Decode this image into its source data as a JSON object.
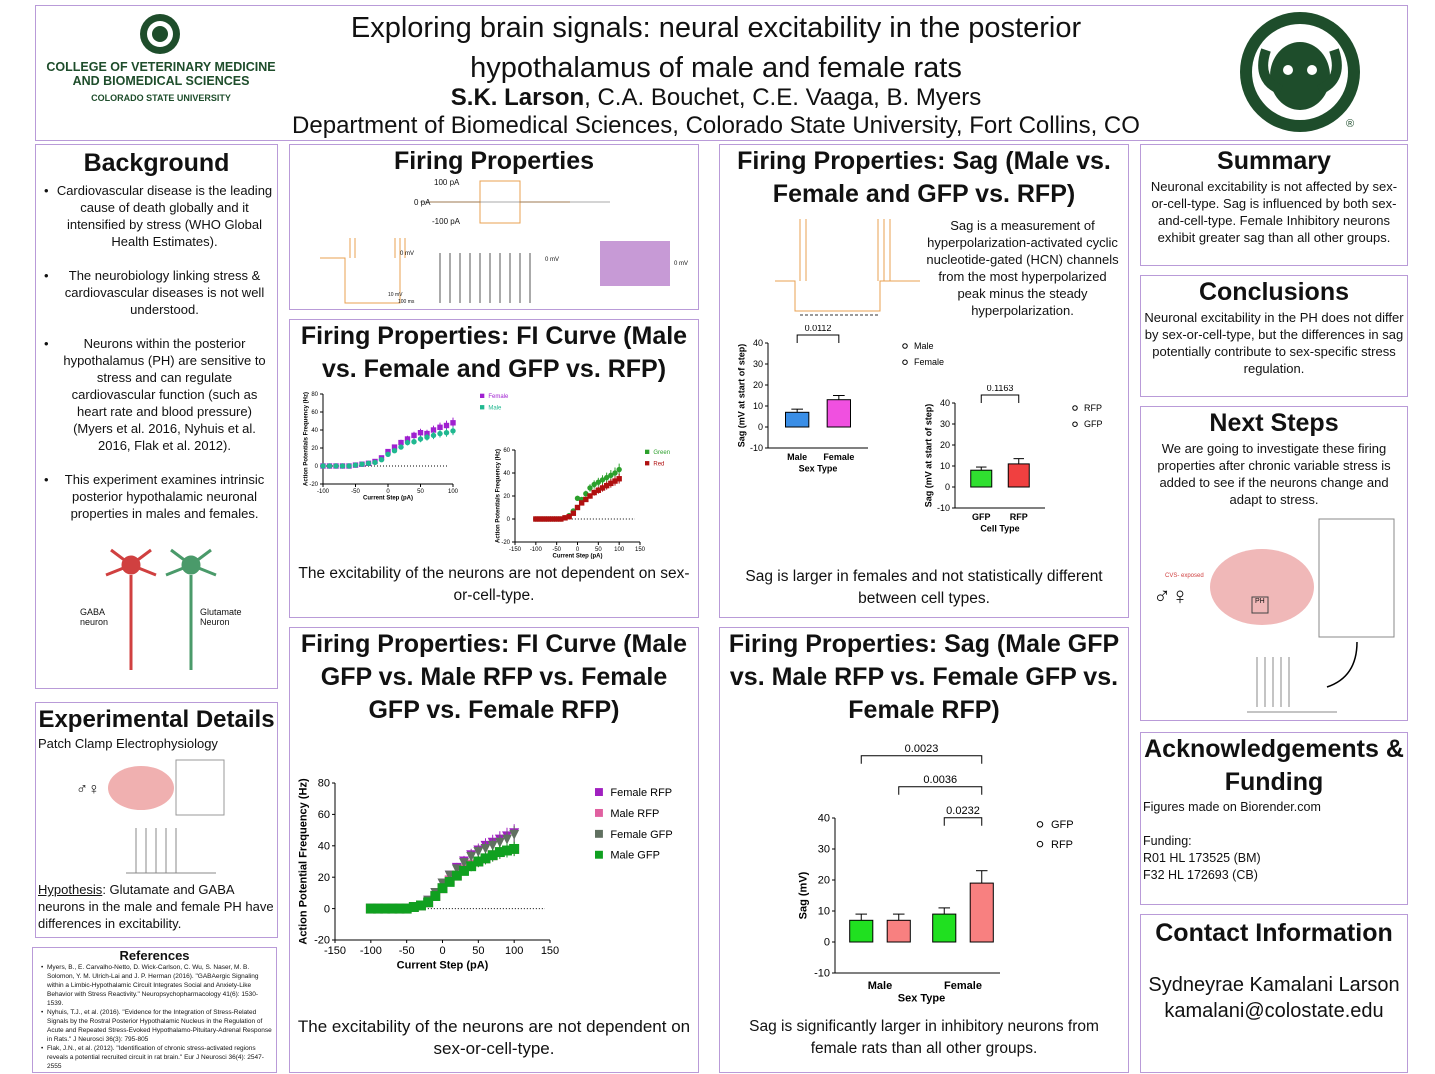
{
  "header": {
    "college_line1": "COLLEGE OF VETERINARY MEDICINE",
    "college_line2": "AND BIOMEDICAL SCIENCES",
    "university": "COLORADO STATE UNIVERSITY",
    "title_line1": "Exploring brain signals: neural excitability in the posterior",
    "title_line2": "hypothalamus of male and female rats",
    "lead_author": "S.K. Larson",
    "coauthors": ", C.A. Bouchet, C.E. Vaaga, B. Myers",
    "affiliation": "Department of Biomedical Sciences, Colorado State University, Fort Collins, CO",
    "registered": "®",
    "brand_color": "#1e4d2b"
  },
  "background": {
    "title": "Background",
    "bullets": [
      "Cardiovascular disease is the leading cause of death globally and it intensified by stress (WHO Global Health Estimates).",
      "The neurobiology linking stress & cardiovascular diseases is not well understood.",
      "Neurons within the posterior hypothalamus (PH) are sensitive to stress and can regulate cardiovascular function (such as heart rate and blood pressure) (Myers et al. 2016, Nyhuis et al. 2016, Flak et al. 2012).",
      "This experiment examines intrinsic posterior hypothalamic neuronal properties in males and females."
    ],
    "gaba_label": "GABA neuron",
    "glut_label": "Glutamate Neuron"
  },
  "experimental": {
    "title": "Experimental Details",
    "subtitle": "Patch Clamp Electrophysiology",
    "hyp_label": "Hypothesis",
    "hyp_text": ": Glutamate and GABA neurons in the male and female PH have differences in excitability.",
    "sex_symbols": "♂♀"
  },
  "references": {
    "title": "References",
    "items": [
      "Myers, B., E. Carvalho-Netto, D. Wick-Carlson, C. Wu, S. Naser, M. B. Solomon, Y. M. Ulrich-Lai and J. P. Herman (2016). \"GABAergic Signaling within a Limbic-Hypothalamic Circuit Integrates Social and Anxiety-Like Behavior with Stress Reactivity.\" Neuropsychopharmacology 41(6): 1530-1539.",
      "Nyhuis, T.J., et al. (2016). \"Evidence for the Integration of Stress-Related Signals by the Rostral Posterior Hypothalamic Nucleus in the Regulation of Acute and Repeated Stress-Evoked Hypothalamo-Pituitary-Adrenal Response in Rats.\" J Neurosci 36(3): 795-805",
      "Flak, J.N., et al. (2012). \"Identification of chronic stress-activated regions reveals a potential recruited circuit in rat brain.\" Eur J Neurosci 36(4): 2547-2555"
    ]
  },
  "firing": {
    "title": "Firing Properties",
    "step_labels": [
      "100 pA",
      "0 pA",
      "-100 pA"
    ],
    "zero_mv": "0 mV",
    "scale": "10 mV",
    "scale_ms": "100 ms"
  },
  "fi1": {
    "title": "Firing Properties: FI Curve (Male vs. Female and GFP vs. RFP)",
    "caption": "The excitability of the neurons are not dependent on sex-or-cell-type."
  },
  "fi2": {
    "title": "Firing Properties: FI Curve (Male GFP vs. Male RFP vs. Female GFP vs. Female RFP)",
    "caption": "The excitability of the neurons are not dependent on sex-or-cell-type."
  },
  "sag1": {
    "title": "Firing Properties: Sag (Male vs. Female and GFP vs. RFP)",
    "description": "Sag is a measurement of hyperpolarization-activated cyclic nucleotide-gated (HCN) channels from the most hyperpolarized peak minus the steady hyperpolarization.",
    "caption": "Sag is larger in females and not statistically different between cell types."
  },
  "sag2": {
    "title": "Firing Properties: Sag (Male GFP vs. Male RFP vs. Female GFP vs. Female RFP)",
    "caption": "Sag is significantly larger in inhibitory neurons from female rats than all other groups."
  },
  "summary": {
    "title": "Summary",
    "text": "Neuronal excitability is not affected by sex-or-cell-type. Sag is influenced by both sex-and-cell-type. Female Inhibitory neurons exhibit greater sag than all other groups."
  },
  "conclusions": {
    "title": "Conclusions",
    "text": "Neuronal excitability in the PH does not differ by sex-or-cell-type,  but the differences in sag potentially contribute to sex-specific stress regulation."
  },
  "next_steps": {
    "title": "Next Steps",
    "text": "We are going to investigate these firing properties after chronic variable stress is added to see if the neurons change and adapt to stress.",
    "cvs_label": "CVS- exposed",
    "ph_label": "PH",
    "sex_symbols": "♂♀"
  },
  "acknowledgements": {
    "title": "Acknowledgements & Funding",
    "figures": "Figures made on Biorender.com",
    "funding_label": "Funding:",
    "grants": [
      "R01 HL 173525 (BM)",
      "F32 HL 172693 (CB)"
    ]
  },
  "contact": {
    "title": "Contact Information",
    "name": "Sydneyrae Kamalani Larson",
    "email": "kamalani@colostate.edu"
  },
  "chart_data": [
    {
      "id": "fi-sex",
      "type": "line",
      "xlabel": "Current Step (pA)",
      "ylabel": "Action Potentials Frequency (Hz)",
      "xlim": [
        -100,
        100
      ],
      "ylim": [
        -20,
        80
      ],
      "xticks": [
        -100,
        -50,
        0,
        50,
        100
      ],
      "yticks": [
        -20,
        0,
        20,
        40,
        60,
        80
      ],
      "legend": "top-right",
      "x": [
        -100,
        -90,
        -80,
        -70,
        -60,
        -50,
        -40,
        -30,
        -20,
        -10,
        0,
        10,
        20,
        30,
        40,
        50,
        60,
        70,
        80,
        90,
        100
      ],
      "series": [
        {
          "name": "Female",
          "color": "#a020d0",
          "marker": "square",
          "values": [
            0,
            0,
            0,
            0,
            0,
            1,
            2,
            3,
            5,
            9,
            16,
            21,
            26,
            30,
            34,
            37,
            36,
            40,
            43,
            45,
            48
          ]
        },
        {
          "name": "Male",
          "color": "#20b890",
          "marker": "circle",
          "values": [
            0,
            0,
            0,
            0,
            0,
            1,
            2,
            3,
            4,
            7,
            13,
            17,
            21,
            26,
            27,
            30,
            32,
            34,
            36,
            37,
            39
          ]
        }
      ]
    },
    {
      "id": "fi-cell",
      "type": "line",
      "xlabel": "Current Step (pA)",
      "ylabel": "Action Potentials Frequency (Hz)",
      "xlim": [
        -150,
        150
      ],
      "ylim": [
        -20,
        60
      ],
      "xticks": [
        -150,
        -100,
        -50,
        0,
        50,
        100,
        150
      ],
      "yticks": [
        -20,
        0,
        20,
        40,
        60
      ],
      "legend": "top-right",
      "x": [
        -100,
        -90,
        -80,
        -70,
        -60,
        -50,
        -40,
        -30,
        -20,
        -10,
        0,
        10,
        20,
        30,
        40,
        50,
        60,
        70,
        80,
        90,
        100
      ],
      "series": [
        {
          "name": "Green",
          "color": "#2ca02c",
          "marker": "circle",
          "values": [
            0,
            0,
            0,
            0,
            0,
            0,
            0,
            1,
            3,
            7,
            18,
            17,
            22,
            27,
            30,
            32,
            34,
            36,
            38,
            40,
            43
          ]
        },
        {
          "name": "Red",
          "color": "#b01010",
          "marker": "square",
          "values": [
            0,
            0,
            0,
            0,
            0,
            0,
            0,
            1,
            2,
            5,
            10,
            14,
            17,
            20,
            23,
            25,
            27,
            29,
            31,
            33,
            35
          ]
        }
      ]
    },
    {
      "id": "fi-four",
      "type": "line",
      "xlabel": "Current Step (pA)",
      "ylabel": "Action Potential Frequency (Hz)",
      "xlim": [
        -150,
        150
      ],
      "ylim": [
        -20,
        80
      ],
      "xticks": [
        -150,
        -100,
        -50,
        0,
        50,
        100,
        150
      ],
      "yticks": [
        -20,
        0,
        20,
        40,
        60,
        80
      ],
      "legend": "top-right",
      "x": [
        -100,
        -90,
        -80,
        -70,
        -60,
        -50,
        -40,
        -30,
        -20,
        -10,
        0,
        10,
        20,
        30,
        40,
        50,
        60,
        70,
        80,
        90,
        100
      ],
      "series": [
        {
          "name": "Female RFP",
          "color": "#a020c0",
          "marker": "triangle-down",
          "values": [
            0,
            0,
            0,
            0,
            0,
            0,
            1,
            2,
            5,
            10,
            16,
            21,
            26,
            30,
            34,
            37,
            40,
            42,
            44,
            46,
            48
          ]
        },
        {
          "name": "Male RFP",
          "color": "#e060a0",
          "marker": "square",
          "values": [
            0,
            0,
            0,
            0,
            0,
            0,
            1,
            2,
            4,
            8,
            13,
            18,
            21,
            25,
            28,
            30,
            32,
            34,
            36,
            37,
            38
          ]
        },
        {
          "name": "Female GFP",
          "color": "#607060",
          "marker": "triangle-down",
          "values": [
            0,
            0,
            0,
            0,
            0,
            0,
            1,
            2,
            5,
            10,
            16,
            21,
            25,
            29,
            33,
            36,
            38,
            40,
            42,
            44,
            47
          ]
        },
        {
          "name": "Male GFP",
          "color": "#10a020",
          "marker": "square",
          "values": [
            0,
            0,
            0,
            0,
            0,
            0,
            1,
            2,
            4,
            8,
            13,
            17,
            21,
            24,
            27,
            30,
            32,
            34,
            36,
            37,
            38
          ]
        }
      ]
    },
    {
      "id": "sag-sex",
      "type": "bar",
      "xlabel": "Sex Type",
      "ylabel": "Sag (mV at start of step)",
      "ylim": [
        -10,
        40
      ],
      "yticks": [
        -10,
        0,
        10,
        20,
        30,
        40
      ],
      "categories": [
        "Male",
        "Female"
      ],
      "values": [
        7,
        13
      ],
      "errors": [
        1.5,
        2
      ],
      "colors": [
        "#3a8ee6",
        "#f050e0"
      ],
      "legend": [
        "Male",
        "Female"
      ],
      "pvalues": [
        {
          "pair": [
            0,
            1
          ],
          "p": "0.0112"
        }
      ]
    },
    {
      "id": "sag-cell",
      "type": "bar",
      "xlabel": "Cell Type",
      "ylabel": "Sag (mV at start of step)",
      "ylim": [
        -10,
        40
      ],
      "yticks": [
        -10,
        0,
        10,
        20,
        30,
        40
      ],
      "categories": [
        "GFP",
        "RFP"
      ],
      "values": [
        8,
        11
      ],
      "errors": [
        1.5,
        2.5
      ],
      "colors": [
        "#30e030",
        "#f04040"
      ],
      "legend": [
        "RFP",
        "GFP"
      ],
      "pvalues": [
        {
          "pair": [
            0,
            1
          ],
          "p": "0.1163"
        }
      ]
    },
    {
      "id": "sag-four",
      "type": "bar",
      "xlabel": "Sex Type",
      "ylabel": "Sag (mV)",
      "ylim": [
        -10,
        40
      ],
      "yticks": [
        -10,
        0,
        10,
        20,
        30,
        40
      ],
      "groups": [
        "Male",
        "Female"
      ],
      "categories": [
        "Male GFP",
        "Male RFP",
        "Female GFP",
        "Female RFP"
      ],
      "values": [
        7,
        7,
        9,
        19
      ],
      "errors": [
        2,
        2,
        2,
        4
      ],
      "colors": [
        "#20e020",
        "#f88080",
        "#20e020",
        "#f88080"
      ],
      "legend": [
        "GFP",
        "RFP"
      ],
      "pvalues": [
        {
          "pair": [
            0,
            3
          ],
          "p": "0.0023"
        },
        {
          "pair": [
            1,
            3
          ],
          "p": "0.0036"
        },
        {
          "pair": [
            2,
            3
          ],
          "p": "0.0232"
        }
      ]
    }
  ]
}
